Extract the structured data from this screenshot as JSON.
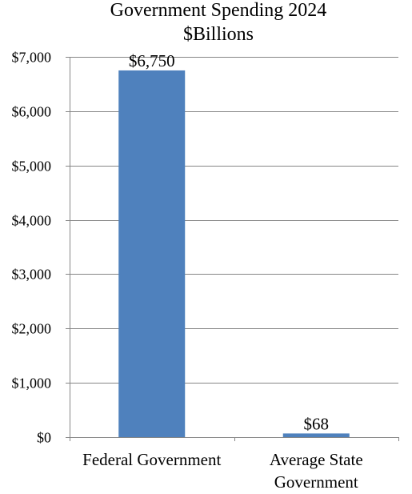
{
  "chart_data": {
    "type": "bar",
    "title": "Government Spending 2024",
    "subtitle": "$Billions",
    "categories": [
      "Federal Government",
      "Average State Government"
    ],
    "category_lines": [
      [
        "Federal Government"
      ],
      [
        "Average State",
        "Government"
      ]
    ],
    "values": [
      6750,
      68
    ],
    "data_labels": [
      "$6,750",
      "$68"
    ],
    "ylim": [
      0,
      7000
    ],
    "yticks": [
      0,
      1000,
      2000,
      3000,
      4000,
      5000,
      6000,
      7000
    ],
    "ytick_labels": [
      "$0",
      "$1,000",
      "$2,000",
      "$3,000",
      "$4,000",
      "$5,000",
      "$6,000",
      "$7,000"
    ],
    "grid": true,
    "legend": "none",
    "colors": {
      "bar": "#4f81bd",
      "grid": "#868686",
      "axis": "#868686",
      "text": "#000000"
    }
  }
}
